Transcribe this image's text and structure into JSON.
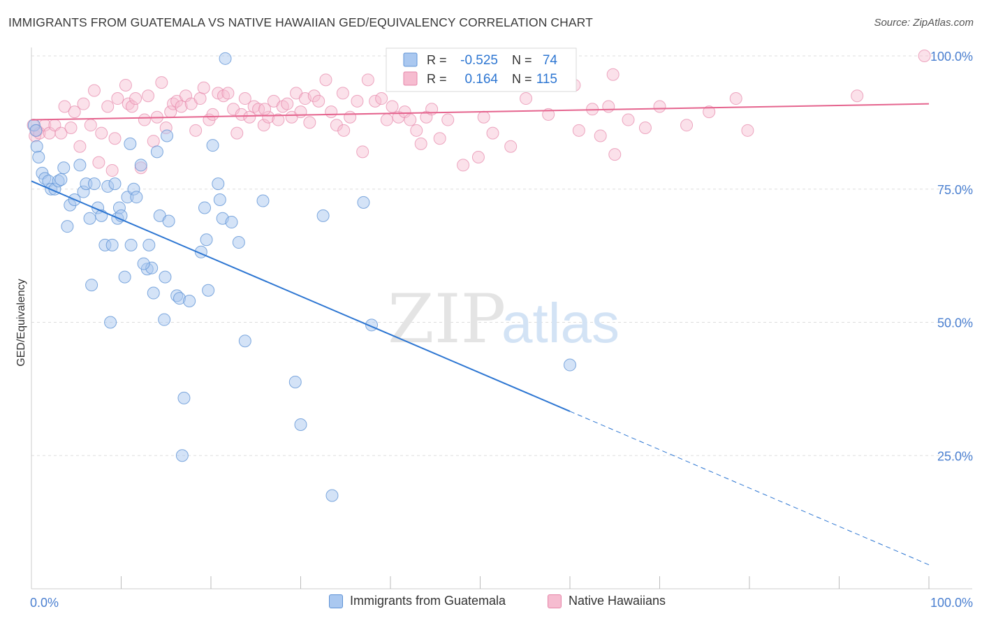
{
  "title": "IMMIGRANTS FROM GUATEMALA VS NATIVE HAWAIIAN GED/EQUIVALENCY CORRELATION CHART",
  "source": "Source: ZipAtlas.com",
  "watermark": {
    "zip": "ZIP",
    "atlas": "atlas"
  },
  "colors": {
    "blue_fill": "#aac8f0",
    "blue_stroke": "#5f93d6",
    "blue_line": "#2d76d2",
    "pink_fill": "#f6bcd0",
    "pink_stroke": "#e585a8",
    "pink_line": "#e5648e",
    "tick_label": "#4a7fd0",
    "grid": "#dddddd"
  },
  "legend_box": {
    "rows": [
      {
        "r_label": "R =",
        "r_value": "-0.525",
        "n_label": "N =",
        "n_value": "74",
        "series": "blue"
      },
      {
        "r_label": "R =",
        "r_value": "0.164",
        "n_label": "N =",
        "n_value": "115",
        "series": "pink"
      }
    ]
  },
  "chart_data": {
    "type": "scatter",
    "title": "IMMIGRANTS FROM GUATEMALA VS NATIVE HAWAIIAN GED/EQUIVALENCY CORRELATION CHART",
    "xlabel": "",
    "ylabel": "GED/Equivalency",
    "xlim": [
      0,
      100
    ],
    "ylim": [
      0,
      100
    ],
    "x_tick_labels": [
      "0.0%",
      "100.0%"
    ],
    "y_ticks": [
      25,
      50,
      75,
      100
    ],
    "y_tick_labels": [
      "25.0%",
      "50.0%",
      "75.0%",
      "100.0%"
    ],
    "grid": true,
    "legend": "bottom-center",
    "series": [
      {
        "name": "Immigrants from Guatemala",
        "color": "blue",
        "trend": {
          "x0": 0,
          "y0": 76.5,
          "x1": 100,
          "y1": 4.5,
          "solid_until_x": 60
        },
        "points": [
          [
            0.3,
            87.0
          ],
          [
            0.5,
            86.0
          ],
          [
            0.6,
            83.0
          ],
          [
            0.8,
            81.0
          ],
          [
            1.2,
            78.0
          ],
          [
            1.5,
            77.0
          ],
          [
            1.9,
            76.5
          ],
          [
            2.2,
            75.0
          ],
          [
            2.6,
            75.0
          ],
          [
            3.0,
            76.5
          ],
          [
            3.3,
            76.8
          ],
          [
            3.6,
            79.0
          ],
          [
            4.0,
            68.0
          ],
          [
            4.3,
            72.0
          ],
          [
            4.8,
            73.0
          ],
          [
            5.4,
            79.5
          ],
          [
            5.8,
            74.5
          ],
          [
            6.1,
            76.0
          ],
          [
            6.5,
            69.5
          ],
          [
            6.7,
            57.0
          ],
          [
            7.0,
            76.0
          ],
          [
            7.4,
            71.5
          ],
          [
            7.8,
            70.0
          ],
          [
            8.2,
            64.5
          ],
          [
            8.5,
            75.5
          ],
          [
            8.8,
            50.0
          ],
          [
            9.0,
            64.5
          ],
          [
            9.3,
            76.0
          ],
          [
            9.6,
            69.5
          ],
          [
            9.8,
            71.5
          ],
          [
            10.0,
            70.0
          ],
          [
            10.4,
            58.5
          ],
          [
            10.7,
            73.5
          ],
          [
            11.0,
            83.5
          ],
          [
            11.1,
            64.5
          ],
          [
            11.4,
            75.0
          ],
          [
            11.7,
            73.5
          ],
          [
            12.2,
            79.5
          ],
          [
            12.9,
            60.0
          ],
          [
            13.1,
            64.5
          ],
          [
            13.4,
            60.2
          ],
          [
            13.6,
            55.5
          ],
          [
            14.0,
            82.0
          ],
          [
            14.3,
            70.0
          ],
          [
            14.8,
            50.5
          ],
          [
            14.9,
            58.5
          ],
          [
            15.1,
            85.0
          ],
          [
            15.3,
            69.0
          ],
          [
            16.2,
            55.0
          ],
          [
            16.5,
            54.5
          ],
          [
            16.8,
            25.0
          ],
          [
            17.0,
            35.8
          ],
          [
            17.6,
            54.0
          ],
          [
            18.9,
            63.2
          ],
          [
            19.3,
            71.5
          ],
          [
            19.5,
            65.5
          ],
          [
            19.7,
            56.0
          ],
          [
            20.2,
            83.2
          ],
          [
            21.0,
            73.0
          ],
          [
            21.3,
            69.5
          ],
          [
            21.6,
            99.5
          ],
          [
            22.3,
            68.8
          ],
          [
            23.1,
            65.0
          ],
          [
            23.8,
            46.5
          ],
          [
            25.8,
            72.8
          ],
          [
            29.4,
            38.8
          ],
          [
            30.0,
            30.8
          ],
          [
            32.5,
            70.0
          ],
          [
            33.5,
            17.5
          ],
          [
            37.0,
            72.5
          ],
          [
            37.9,
            49.5
          ],
          [
            60.0,
            42.0
          ],
          [
            20.8,
            76.0
          ],
          [
            12.5,
            61.0
          ]
        ]
      },
      {
        "name": "Native Hawaiians",
        "color": "pink",
        "trend": {
          "x0": 0,
          "y0": 88.0,
          "x1": 100,
          "y1": 91.0
        },
        "points": [
          [
            0.2,
            87.0
          ],
          [
            0.4,
            85.0
          ],
          [
            0.6,
            86.0
          ],
          [
            0.9,
            85.5
          ],
          [
            1.5,
            87.0
          ],
          [
            2.0,
            85.5
          ],
          [
            2.6,
            87.0
          ],
          [
            3.3,
            85.5
          ],
          [
            3.7,
            90.5
          ],
          [
            4.4,
            86.5
          ],
          [
            4.8,
            89.5
          ],
          [
            5.4,
            83.0
          ],
          [
            5.8,
            91.0
          ],
          [
            6.6,
            87.0
          ],
          [
            7.0,
            93.5
          ],
          [
            7.5,
            80.0
          ],
          [
            7.8,
            85.5
          ],
          [
            8.5,
            90.5
          ],
          [
            9.0,
            78.5
          ],
          [
            9.3,
            84.5
          ],
          [
            9.6,
            92.0
          ],
          [
            10.5,
            94.5
          ],
          [
            10.8,
            91.0
          ],
          [
            11.2,
            90.5
          ],
          [
            11.6,
            92.0
          ],
          [
            12.2,
            79.0
          ],
          [
            12.6,
            88.0
          ],
          [
            13.0,
            92.5
          ],
          [
            13.6,
            84.0
          ],
          [
            14.0,
            88.5
          ],
          [
            14.5,
            95.0
          ],
          [
            15.0,
            86.5
          ],
          [
            15.5,
            89.5
          ],
          [
            15.8,
            91.0
          ],
          [
            16.2,
            91.5
          ],
          [
            16.7,
            90.5
          ],
          [
            17.2,
            92.5
          ],
          [
            17.8,
            91.0
          ],
          [
            18.3,
            86.0
          ],
          [
            18.8,
            92.0
          ],
          [
            19.2,
            94.0
          ],
          [
            19.8,
            88.0
          ],
          [
            20.2,
            89.0
          ],
          [
            20.8,
            93.0
          ],
          [
            21.4,
            92.5
          ],
          [
            21.9,
            93.0
          ],
          [
            22.5,
            90.0
          ],
          [
            22.9,
            85.5
          ],
          [
            23.4,
            89.0
          ],
          [
            23.8,
            92.0
          ],
          [
            24.3,
            88.5
          ],
          [
            24.8,
            90.5
          ],
          [
            25.3,
            90.0
          ],
          [
            25.9,
            87.0
          ],
          [
            26.4,
            88.5
          ],
          [
            27.0,
            91.5
          ],
          [
            27.5,
            88.0
          ],
          [
            28.0,
            90.5
          ],
          [
            28.5,
            91.0
          ],
          [
            29.0,
            88.5
          ],
          [
            29.5,
            93.0
          ],
          [
            30.0,
            89.5
          ],
          [
            30.5,
            92.0
          ],
          [
            31.0,
            87.5
          ],
          [
            31.5,
            92.5
          ],
          [
            32.0,
            91.5
          ],
          [
            32.8,
            95.5
          ],
          [
            33.4,
            89.5
          ],
          [
            34.0,
            87.0
          ],
          [
            34.7,
            93.0
          ],
          [
            35.5,
            88.5
          ],
          [
            36.3,
            91.5
          ],
          [
            36.9,
            82.0
          ],
          [
            37.5,
            95.5
          ],
          [
            38.3,
            91.5
          ],
          [
            39.0,
            92.0
          ],
          [
            39.6,
            88.0
          ],
          [
            40.2,
            90.5
          ],
          [
            40.9,
            88.5
          ],
          [
            41.6,
            89.5
          ],
          [
            42.2,
            88.0
          ],
          [
            42.9,
            86.0
          ],
          [
            43.4,
            83.5
          ],
          [
            44.0,
            88.5
          ],
          [
            44.6,
            90.0
          ],
          [
            45.5,
            84.5
          ],
          [
            46.4,
            88.0
          ],
          [
            48.1,
            79.5
          ],
          [
            49.8,
            81.0
          ],
          [
            50.4,
            88.5
          ],
          [
            51.4,
            85.5
          ],
          [
            53.4,
            83.0
          ],
          [
            55.1,
            92.0
          ],
          [
            57.6,
            89.0
          ],
          [
            60.0,
            99.0
          ],
          [
            60.5,
            94.5
          ],
          [
            61.0,
            86.0
          ],
          [
            62.5,
            90.0
          ],
          [
            63.4,
            85.0
          ],
          [
            64.3,
            90.5
          ],
          [
            64.8,
            96.5
          ],
          [
            65.0,
            81.5
          ],
          [
            66.5,
            88.0
          ],
          [
            68.4,
            86.5
          ],
          [
            70.0,
            90.5
          ],
          [
            73.0,
            87.0
          ],
          [
            75.5,
            89.5
          ],
          [
            78.5,
            92.0
          ],
          [
            79.8,
            86.0
          ],
          [
            92.0,
            92.5
          ],
          [
            99.5,
            100.0
          ],
          [
            34.8,
            86.0
          ],
          [
            26.0,
            90.0
          ]
        ]
      }
    ]
  },
  "legend_bottom": [
    {
      "label": "Immigrants from Guatemala",
      "series": "blue"
    },
    {
      "label": "Native Hawaiians",
      "series": "pink"
    }
  ]
}
